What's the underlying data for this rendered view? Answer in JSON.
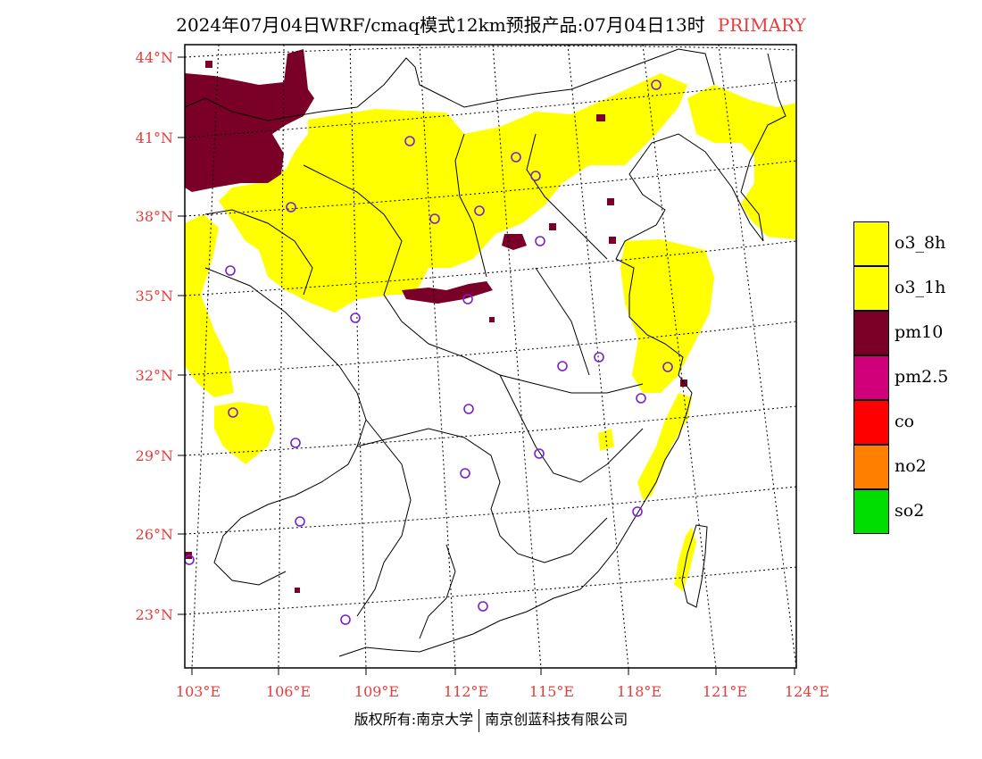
{
  "title": {
    "main": "2024年07月04日WRF/cmaq模式12km预报产品:07月04日13时",
    "tag": "PRIMARY"
  },
  "axes": {
    "lat_labels": [
      "44°N",
      "41°N",
      "38°N",
      "35°N",
      "32°N",
      "29°N",
      "26°N",
      "23°N"
    ],
    "lon_labels": [
      "103°E",
      "106°E",
      "109°E",
      "112°E",
      "115°E",
      "118°E",
      "121°E",
      "124°E"
    ]
  },
  "legend": [
    {
      "label": "o3_8h",
      "color": "#ffff00"
    },
    {
      "label": "o3_1h",
      "color": "#ffff00"
    },
    {
      "label": "pm10",
      "color": "#7a0027"
    },
    {
      "label": "pm2.5",
      "color": "#d0007a"
    },
    {
      "label": "co",
      "color": "#ff0000"
    },
    {
      "label": "no2",
      "color": "#ff7f00"
    },
    {
      "label": "so2",
      "color": "#00dd00"
    }
  ],
  "colors": {
    "o3": "#ffff00",
    "pm10": "#7a0027",
    "pm25": "#d0007a",
    "label_red": "#e83c3c",
    "station_ring": "#7a20d0"
  },
  "copyright": {
    "left": "版权所有:南京大学",
    "right": "南京创蓝科技有限公司"
  }
}
